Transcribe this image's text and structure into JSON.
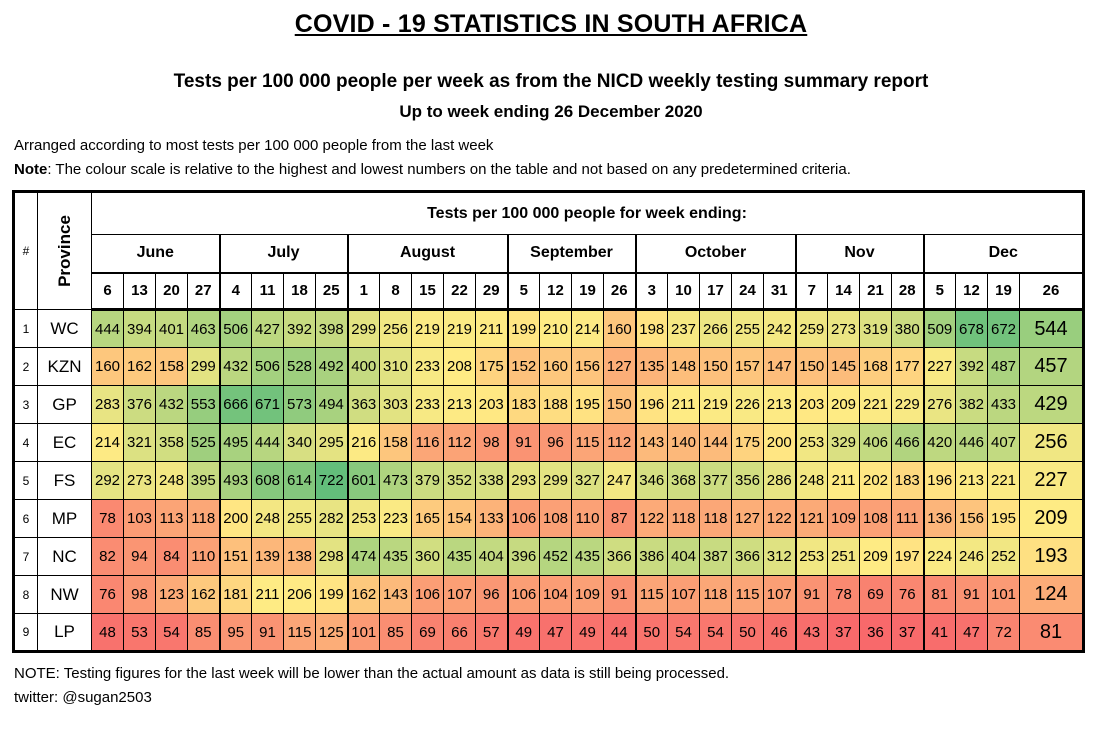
{
  "page": {
    "title": "COVID - 19 STATISTICS IN SOUTH AFRICA",
    "subtitle": "Tests per 100 000 people per week as from the NICD weekly testing summary report",
    "subtitle2": "Up to week ending 26 December 2020",
    "arranged_note": "Arranged according to most tests per 100 000 people from the last week",
    "note_label": "Note",
    "note_text": ": The colour scale is relative to the highest and lowest numbers on the table and not based on any predetermined criteria.",
    "footer_note": "NOTE: Testing figures for the last week will be lower than the actual amount as data is still being processed.",
    "footer_twitter": "twitter: @sugan2503"
  },
  "chart_data": {
    "type": "heatmap",
    "title": "Tests per 100 000 people for week ending:",
    "corner_headers": [
      "#",
      "Province"
    ],
    "legend_position": "none",
    "grid": true,
    "months": [
      {
        "label": "June",
        "weeks": [
          "6",
          "13",
          "20",
          "27"
        ]
      },
      {
        "label": "July",
        "weeks": [
          "4",
          "11",
          "18",
          "25"
        ]
      },
      {
        "label": "August",
        "weeks": [
          "1",
          "8",
          "15",
          "22",
          "29"
        ]
      },
      {
        "label": "September",
        "weeks": [
          "5",
          "12",
          "19",
          "26"
        ]
      },
      {
        "label": "October",
        "weeks": [
          "3",
          "10",
          "17",
          "24",
          "31"
        ]
      },
      {
        "label": "Nov",
        "weeks": [
          "7",
          "14",
          "21",
          "28"
        ]
      },
      {
        "label": "Dec",
        "weeks": [
          "5",
          "12",
          "19",
          "26"
        ]
      }
    ],
    "rows": [
      {
        "rank": "1",
        "province": "WC",
        "values": [
          444,
          394,
          401,
          463,
          506,
          427,
          392,
          398,
          299,
          256,
          219,
          219,
          211,
          199,
          210,
          214,
          160,
          198,
          237,
          266,
          255,
          242,
          259,
          273,
          319,
          380,
          509,
          678,
          672,
          544
        ]
      },
      {
        "rank": "2",
        "province": "KZN",
        "values": [
          160,
          162,
          158,
          299,
          432,
          506,
          528,
          492,
          400,
          310,
          233,
          208,
          175,
          152,
          160,
          156,
          127,
          135,
          148,
          150,
          157,
          147,
          150,
          145,
          168,
          177,
          227,
          392,
          487,
          457
        ]
      },
      {
        "rank": "3",
        "province": "GP",
        "values": [
          283,
          376,
          432,
          553,
          666,
          671,
          573,
          494,
          363,
          303,
          233,
          213,
          203,
          183,
          188,
          195,
          150,
          196,
          211,
          219,
          226,
          213,
          203,
          209,
          221,
          229,
          276,
          382,
          433,
          429
        ]
      },
      {
        "rank": "4",
        "province": "EC",
        "values": [
          214,
          321,
          358,
          525,
          495,
          444,
          340,
          295,
          216,
          158,
          116,
          112,
          98,
          91,
          96,
          115,
          112,
          143,
          140,
          144,
          175,
          200,
          253,
          329,
          406,
          466,
          420,
          446,
          407,
          256
        ]
      },
      {
        "rank": "5",
        "province": "FS",
        "values": [
          292,
          273,
          248,
          395,
          493,
          608,
          614,
          722,
          601,
          473,
          379,
          352,
          338,
          293,
          299,
          327,
          247,
          346,
          368,
          377,
          356,
          286,
          248,
          211,
          202,
          183,
          196,
          213,
          221,
          227
        ]
      },
      {
        "rank": "6",
        "province": "MP",
        "values": [
          78,
          103,
          113,
          118,
          200,
          248,
          255,
          282,
          253,
          223,
          165,
          154,
          133,
          106,
          108,
          110,
          87,
          122,
          118,
          118,
          127,
          122,
          121,
          109,
          108,
          111,
          136,
          156,
          195,
          209
        ]
      },
      {
        "rank": "7",
        "province": "NC",
        "values": [
          82,
          94,
          84,
          110,
          151,
          139,
          138,
          298,
          474,
          435,
          360,
          435,
          404,
          396,
          452,
          435,
          366,
          386,
          404,
          387,
          366,
          312,
          253,
          251,
          209,
          197,
          224,
          246,
          252,
          193
        ]
      },
      {
        "rank": "8",
        "province": "NW",
        "values": [
          76,
          98,
          123,
          162,
          181,
          211,
          206,
          199,
          162,
          143,
          106,
          107,
          96,
          106,
          104,
          109,
          91,
          115,
          107,
          118,
          115,
          107,
          91,
          78,
          69,
          76,
          81,
          91,
          101,
          124
        ]
      },
      {
        "rank": "9",
        "province": "LP",
        "values": [
          48,
          53,
          54,
          85,
          95,
          91,
          115,
          125,
          101,
          85,
          69,
          66,
          57,
          49,
          47,
          49,
          44,
          50,
          54,
          54,
          50,
          46,
          43,
          37,
          36,
          37,
          41,
          47,
          72,
          81
        ]
      }
    ],
    "color_scale": {
      "type": "3-color",
      "min_color": "#F8696B",
      "mid_color": "#FFEB84",
      "max_color": "#63BE7B",
      "min_stat": "minimum",
      "mid_stat": "50th percentile",
      "max_stat": "maximum"
    },
    "layout": {
      "rank_col_width": 24,
      "prov_col_width": 54,
      "week_col_width": 32,
      "last_col_width": 64
    }
  }
}
